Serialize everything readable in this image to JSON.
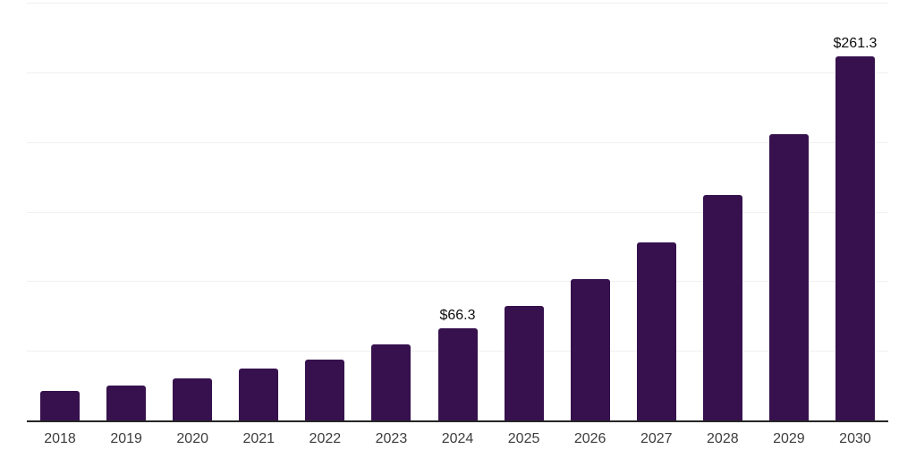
{
  "chart_data": {
    "type": "bar",
    "title": "",
    "xlabel": "",
    "ylabel": "",
    "categories": [
      "2018",
      "2019",
      "2020",
      "2021",
      "2022",
      "2023",
      "2024",
      "2025",
      "2026",
      "2027",
      "2028",
      "2029",
      "2030"
    ],
    "values": [
      21,
      25,
      30.5,
      37,
      44,
      54.5,
      66.3,
      82,
      101.5,
      128,
      162,
      205.5,
      261.3
    ],
    "data_labels": [
      "",
      "",
      "",
      "",
      "",
      "",
      "$66.3",
      "",
      "",
      "",
      "",
      "",
      "$261.3"
    ],
    "ylim": [
      0,
      300
    ],
    "grid_step": 50,
    "grid": true,
    "legend": false,
    "y_tick_labels_visible": false,
    "colors": {
      "bar": "#36114D",
      "axis_line": "#262626",
      "gridline": "#f1f1f1",
      "tick_label": "#3d3d3d",
      "data_label": "#0d0d0d",
      "background": "#ffffff"
    }
  }
}
